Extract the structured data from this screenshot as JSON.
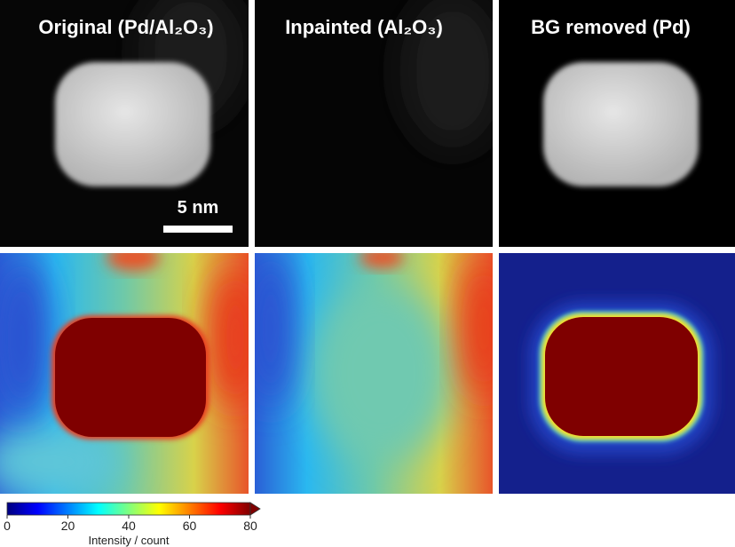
{
  "panels": [
    {
      "title": "Original (Pd/Al₂O₃)"
    },
    {
      "title": "Inpainted (Al₂O₃)"
    },
    {
      "title": "BG removed (Pd)"
    }
  ],
  "scale_bar": {
    "label": "5 nm"
  },
  "colorbar": {
    "lim": [
      0,
      80
    ],
    "ticks": [
      0,
      20,
      40,
      60,
      80
    ],
    "label": "Intensity / count"
  }
}
